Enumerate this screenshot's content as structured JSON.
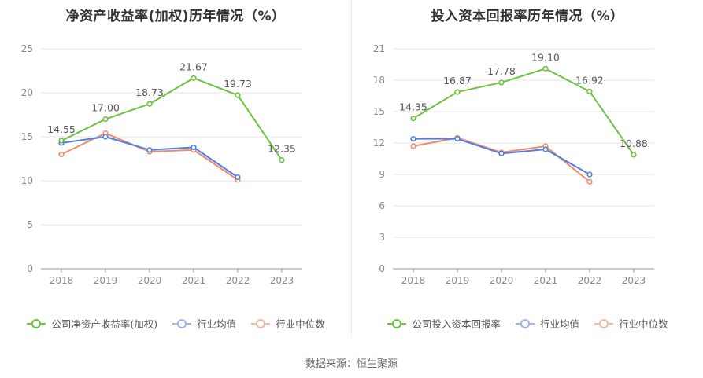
{
  "source_text": "数据来源：恒生聚源",
  "colors": {
    "company": "#6cc33c",
    "avg": "#4f7fe3",
    "median": "#f08c6c",
    "grid": "#e6e6e6",
    "axis": "#999999",
    "tick": "#888888",
    "label": "#555555"
  },
  "chart_data": [
    {
      "type": "line",
      "title": "净资产收益率(加权)历年情况（%）",
      "categories": [
        "2018",
        "2019",
        "2020",
        "2021",
        "2022",
        "2023"
      ],
      "ylim": [
        0,
        25
      ],
      "yticks": [
        0,
        5,
        10,
        15,
        20,
        25
      ],
      "grid": true,
      "legend_position": "bottom",
      "series": [
        {
          "name": "公司净资产收益率(加权)",
          "color_key": "company",
          "labels": true,
          "values": [
            14.55,
            17.0,
            18.73,
            21.67,
            19.73,
            12.35
          ],
          "value_labels": [
            "14.55",
            "17.00",
            "18.73",
            "21.67",
            "19.73",
            "12.35"
          ]
        },
        {
          "name": "行业均值",
          "color_key": "avg",
          "labels": false,
          "values": [
            14.3,
            15.0,
            13.5,
            13.8,
            10.4,
            null
          ]
        },
        {
          "name": "行业中位数",
          "color_key": "median",
          "labels": false,
          "values": [
            13.0,
            15.4,
            13.3,
            13.5,
            10.1,
            null
          ]
        }
      ]
    },
    {
      "type": "line",
      "title": "投入资本回报率历年情况（%）",
      "categories": [
        "2018",
        "2019",
        "2020",
        "2021",
        "2022",
        "2023"
      ],
      "ylim": [
        0,
        21
      ],
      "yticks": [
        0,
        3,
        6,
        9,
        12,
        15,
        18,
        21
      ],
      "grid": true,
      "legend_position": "bottom",
      "series": [
        {
          "name": "公司投入资本回报率",
          "color_key": "company",
          "labels": true,
          "values": [
            14.35,
            16.87,
            17.78,
            19.1,
            16.92,
            10.88
          ],
          "value_labels": [
            "14.35",
            "16.87",
            "17.78",
            "19.10",
            "16.92",
            "10.88"
          ]
        },
        {
          "name": "行业均值",
          "color_key": "avg",
          "labels": false,
          "values": [
            12.4,
            12.4,
            11.0,
            11.4,
            9.0,
            null
          ]
        },
        {
          "name": "行业中位数",
          "color_key": "median",
          "labels": false,
          "values": [
            11.7,
            12.5,
            11.1,
            11.7,
            8.3,
            null
          ]
        }
      ]
    }
  ]
}
